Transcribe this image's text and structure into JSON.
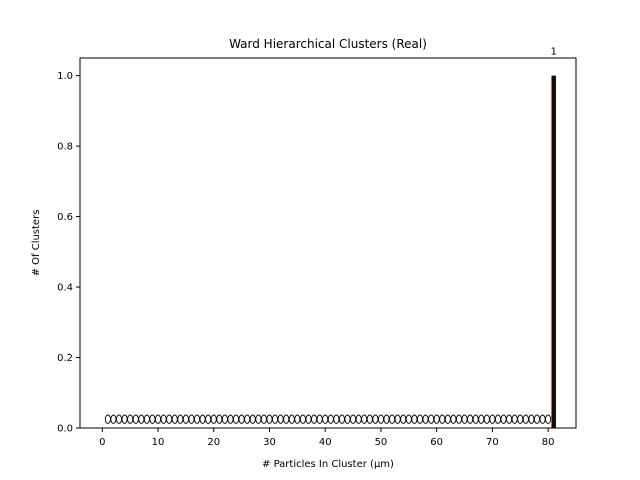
{
  "chart_data": {
    "type": "bar",
    "title": "Ward Hierarchical Clusters (Real)",
    "xlabel": "# Particles In Cluster (µm)",
    "ylabel": "# Of Clusters",
    "xlim": [
      -4,
      85
    ],
    "ylim": [
      0,
      1.05
    ],
    "xticks": [
      "0",
      "10",
      "20",
      "30",
      "40",
      "50",
      "60",
      "70",
      "80"
    ],
    "yticks": [
      "0.0",
      "0.2",
      "0.4",
      "0.6",
      "0.8",
      "1.0"
    ],
    "bars": [
      {
        "x": 81,
        "value": 1,
        "label": "1"
      }
    ],
    "zero_markers": {
      "x_start": 1,
      "x_end": 80,
      "marker": "circle-outline",
      "y": 0.025
    },
    "bar_color": "#1a0a00",
    "grid": false,
    "legend": "none"
  }
}
